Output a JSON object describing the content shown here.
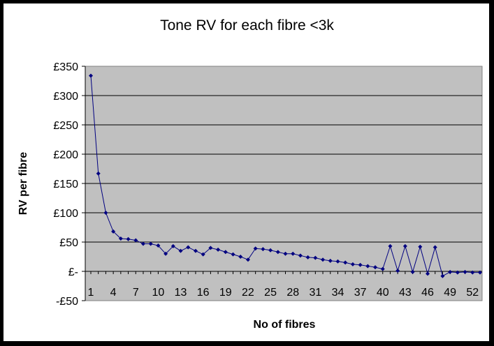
{
  "chart_data": {
    "type": "line",
    "title": "Tone RV for each fibre <3k",
    "xlabel": "No of fibres",
    "ylabel": "RV per fibre",
    "x": [
      1,
      2,
      3,
      4,
      5,
      6,
      7,
      8,
      9,
      10,
      11,
      12,
      13,
      14,
      15,
      16,
      17,
      18,
      19,
      20,
      21,
      22,
      23,
      24,
      25,
      26,
      27,
      28,
      29,
      30,
      31,
      32,
      33,
      34,
      35,
      36,
      37,
      38,
      39,
      40,
      41,
      42,
      43,
      44,
      45,
      46,
      47,
      48,
      49,
      50,
      51,
      52,
      53
    ],
    "x_tick_labels": [
      "1",
      "4",
      "7",
      "10",
      "13",
      "16",
      "19",
      "22",
      "25",
      "28",
      "31",
      "34",
      "37",
      "40",
      "43",
      "46",
      "49",
      "52"
    ],
    "x_tick_values": [
      1,
      4,
      7,
      10,
      13,
      16,
      19,
      22,
      25,
      28,
      31,
      34,
      37,
      40,
      43,
      46,
      49,
      52
    ],
    "series": [
      {
        "values": [
          334,
          167,
          100,
          68,
          56,
          55,
          53,
          47,
          47,
          44,
          30,
          43,
          35,
          41,
          35,
          29,
          40,
          37,
          33,
          29,
          25,
          20,
          39,
          38,
          36,
          33,
          30,
          30,
          27,
          24,
          23,
          20,
          18,
          17,
          15,
          12,
          11,
          9,
          7,
          4,
          43,
          1,
          43,
          -1,
          42,
          -4,
          41,
          -8,
          -1,
          -2,
          -1,
          -2,
          -2
        ],
        "color": "#000080"
      }
    ],
    "ylim": [
      -50,
      350
    ],
    "y_ticks": [
      -50,
      0,
      50,
      100,
      150,
      200,
      250,
      300,
      350
    ],
    "y_tick_labels": [
      "-£50",
      "£-",
      "£50",
      "£100",
      "£150",
      "£200",
      "£250",
      "£300",
      "£350"
    ],
    "grid": true,
    "plot_background": "#c0c0c0",
    "legend": "none"
  }
}
